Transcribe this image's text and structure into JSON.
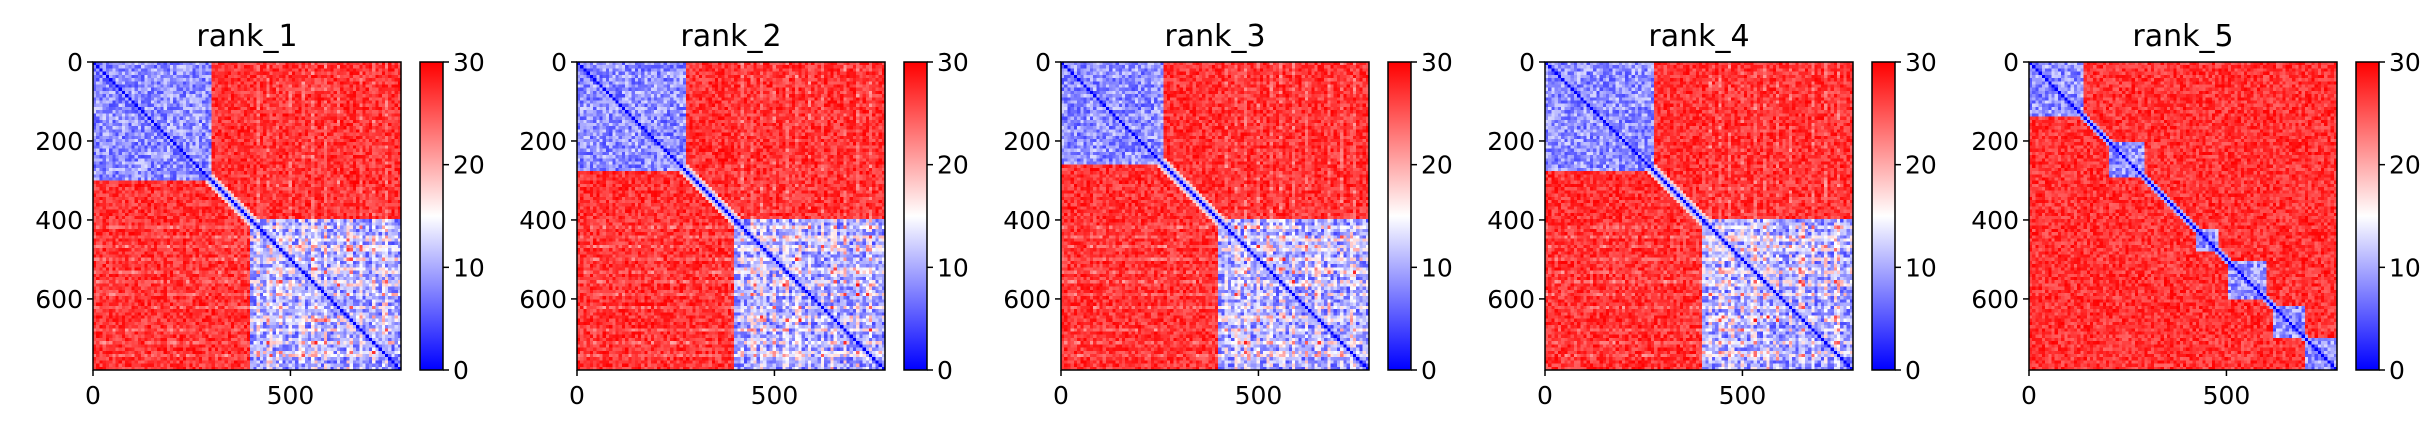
{
  "chart_data": {
    "type": "heatmap",
    "colormap": {
      "name": "bwr",
      "low": "#0000ff",
      "mid": "#ffffff",
      "high": "#ff0000"
    },
    "vmin": 0,
    "vmax": 30,
    "size": 780,
    "xlim": [
      0,
      780
    ],
    "ylim": [
      780,
      0
    ],
    "x_ticks": [
      0,
      500
    ],
    "y_ticks": [
      0,
      200,
      400,
      600
    ],
    "colorbar_ticks": [
      0,
      10,
      20,
      30
    ],
    "panels": [
      {
        "title": "rank_1",
        "blocks": [
          [
            0,
            300
          ],
          [
            400,
            780
          ]
        ],
        "stripe_rows": [
          420,
          445,
          470,
          500,
          530,
          560,
          590,
          620,
          650,
          680,
          710,
          740
        ],
        "band": 22,
        "noise": 1
      },
      {
        "title": "rank_2",
        "blocks": [
          [
            0,
            280
          ],
          [
            400,
            780
          ]
        ],
        "stripe_rows": [
          420,
          445,
          470,
          500,
          530,
          560,
          590,
          620,
          650,
          680,
          710,
          740
        ],
        "band": 20,
        "noise": 2
      },
      {
        "title": "rank_3",
        "blocks": [
          [
            0,
            260
          ],
          [
            400,
            780
          ]
        ],
        "stripe_rows": [
          420,
          445,
          470,
          500,
          530,
          560,
          590,
          620,
          650,
          680,
          710,
          740
        ],
        "band": 18,
        "noise": 3
      },
      {
        "title": "rank_4",
        "blocks": [
          [
            0,
            280
          ],
          [
            400,
            780
          ]
        ],
        "stripe_rows": [
          420,
          445,
          470,
          500,
          530,
          560,
          590,
          620,
          650,
          680,
          710,
          740
        ],
        "band": 20,
        "noise": 4
      },
      {
        "title": "rank_5",
        "blocks": [
          [
            0,
            140
          ],
          [
            200,
            290
          ],
          [
            420,
            480
          ],
          [
            500,
            600
          ],
          [
            620,
            700
          ],
          [
            700,
            780
          ]
        ],
        "stripe_rows": [],
        "band": 16,
        "noise": 5
      }
    ]
  }
}
